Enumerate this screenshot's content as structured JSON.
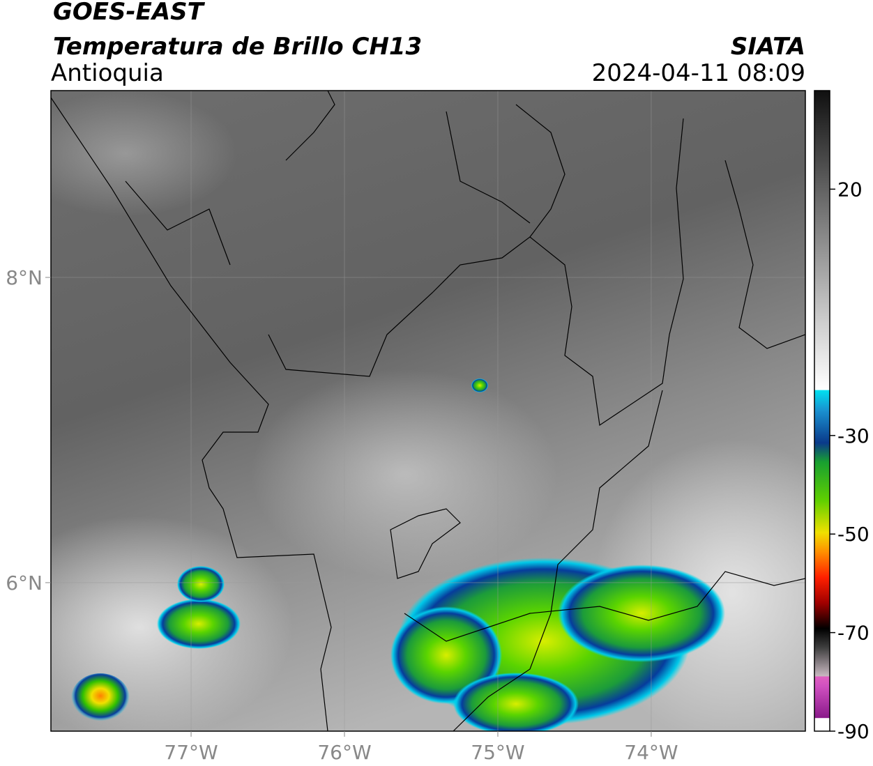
{
  "header": {
    "title": "GOES-EAST",
    "subtitle": "Temperatura de Brillo CH13",
    "region": "Antioquia",
    "source": "SIATA",
    "datetime": "2024-04-11 08:09"
  },
  "map": {
    "lon_range": [
      -77.914,
      -72.995
    ],
    "lat_range": [
      5.027,
      9.224
    ],
    "lon_ticks": [
      {
        "value": -77,
        "label": "77°W"
      },
      {
        "value": -76,
        "label": "76°W"
      },
      {
        "value": -75,
        "label": "75°W"
      },
      {
        "value": -74,
        "label": "74°W"
      }
    ],
    "lat_ticks": [
      {
        "value": 8,
        "label": "8°N"
      },
      {
        "value": 6,
        "label": "6°N"
      }
    ]
  },
  "colorbar": {
    "range": [
      -90,
      40
    ],
    "ticks": [
      20,
      -30,
      -50,
      -70,
      -90
    ]
  }
}
